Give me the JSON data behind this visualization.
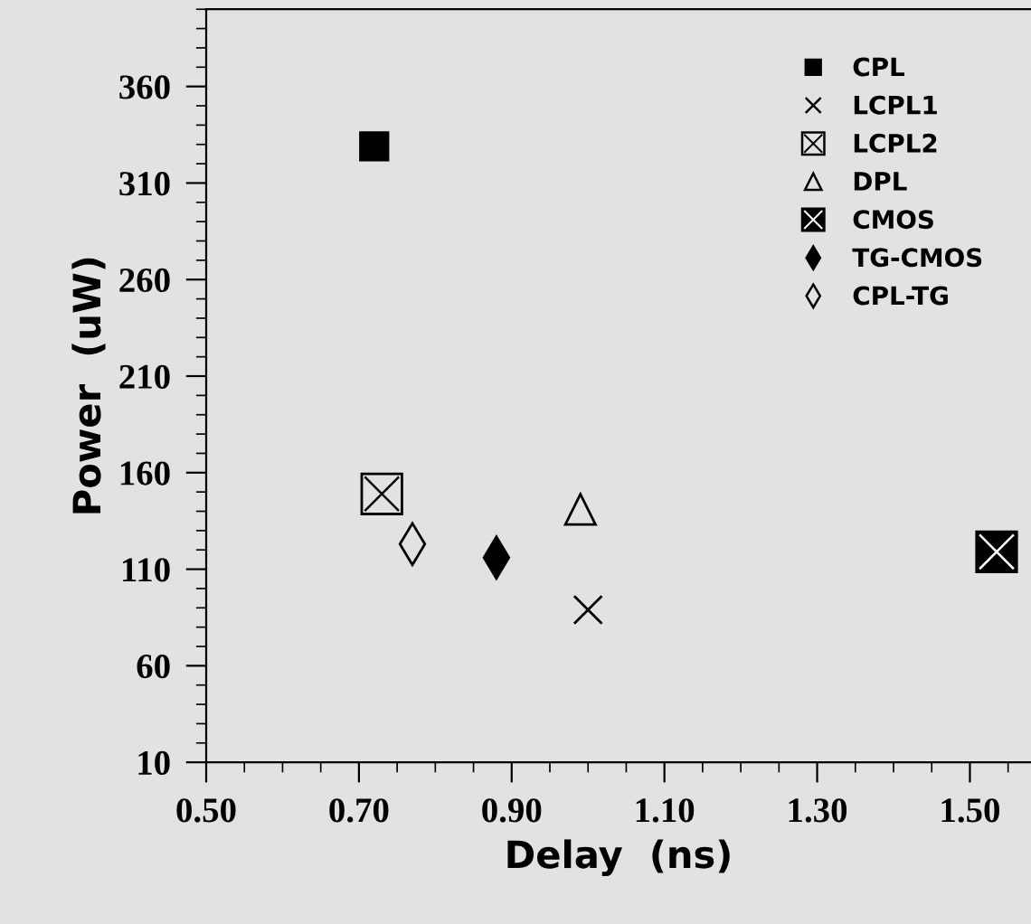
{
  "chart_data": {
    "type": "scatter",
    "xlabel": "Delay  (ns)",
    "ylabel": "Power  (uW)",
    "xlim": [
      0.5,
      1.58
    ],
    "ylim": [
      10,
      400
    ],
    "xticks": [
      {
        "value": 0.5,
        "label": "0.50"
      },
      {
        "value": 0.7,
        "label": "0.70"
      },
      {
        "value": 0.9,
        "label": "0.90"
      },
      {
        "value": 1.1,
        "label": "1.10"
      },
      {
        "value": 1.3,
        "label": "1.30"
      },
      {
        "value": 1.5,
        "label": "1.50"
      }
    ],
    "yticks": [
      10,
      60,
      110,
      160,
      210,
      260,
      310,
      360
    ],
    "grid": false,
    "legend": "top right",
    "series": [
      {
        "name": "CPL",
        "color": "#000000",
        "marker": "square",
        "x": [
          0.72
        ],
        "values": [
          329
        ]
      },
      {
        "name": "LCPL1",
        "color": "#000000",
        "marker": "cross",
        "x": [
          1.0
        ],
        "values": [
          89
        ]
      },
      {
        "name": "LCPL2",
        "color": "#000000",
        "marker": "square-cross-open",
        "x": [
          0.73
        ],
        "values": [
          149
        ]
      },
      {
        "name": "DPL",
        "color": "#000000",
        "marker": "triangle-open",
        "x": [
          0.99
        ],
        "values": [
          141
        ]
      },
      {
        "name": "CMOS",
        "color": "#000000",
        "marker": "square-cross",
        "x": [
          1.535
        ],
        "values": [
          119
        ]
      },
      {
        "name": "TG-CMOS",
        "color": "#000000",
        "marker": "diamond",
        "x": [
          0.88
        ],
        "values": [
          116
        ]
      },
      {
        "name": "CPL-TG",
        "color": "#000000",
        "marker": "diamond-open",
        "x": [
          0.77
        ],
        "values": [
          123
        ]
      }
    ]
  }
}
